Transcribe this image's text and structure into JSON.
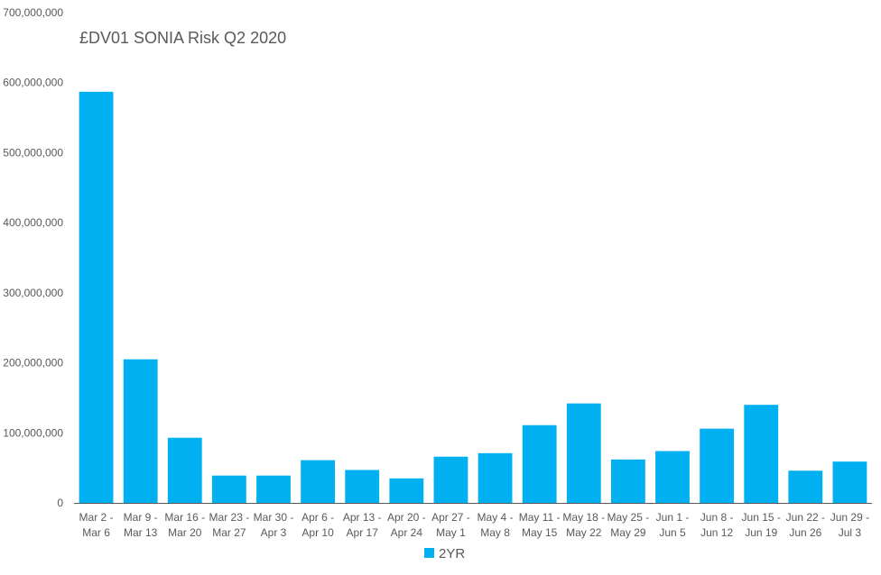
{
  "chart_data": {
    "type": "bar",
    "title": "£DV01 SONIA Risk Q2 2020",
    "xlabel": "",
    "ylabel": "",
    "ylim": [
      0,
      700000000
    ],
    "yticks": [
      "0",
      "100,000,000",
      "200,000,000",
      "300,000,000",
      "400,000,000",
      "500,000,000",
      "600,000,000",
      "700,000,000"
    ],
    "ytick_values": [
      0,
      100000000,
      200000000,
      300000000,
      400000000,
      500000000,
      600000000,
      700000000
    ],
    "categories": [
      [
        "Mar 2 -",
        "Mar 6"
      ],
      [
        "Mar 9 -",
        "Mar 13"
      ],
      [
        "Mar 16 -",
        "Mar 20"
      ],
      [
        "Mar 23 -",
        "Mar 27"
      ],
      [
        "Mar 30 -",
        "Apr 3"
      ],
      [
        "Apr 6 -",
        "Apr 10"
      ],
      [
        "Apr 13 -",
        "Apr 17"
      ],
      [
        "Apr 20 -",
        "Apr 24"
      ],
      [
        "Apr 27 -",
        "May 1"
      ],
      [
        "May 4 -",
        "May 8"
      ],
      [
        "May 11 -",
        "May 15"
      ],
      [
        "May 18 -",
        "May 22"
      ],
      [
        "May 25 -",
        "May 29"
      ],
      [
        "Jun 1 -",
        "Jun 5"
      ],
      [
        "Jun 8 -",
        "Jun 12"
      ],
      [
        "Jun 15 -",
        "Jun 19"
      ],
      [
        "Jun 22 -",
        "Jun 26"
      ],
      [
        "Jun 29 -",
        "Jul 3"
      ]
    ],
    "series": [
      {
        "name": "2YR",
        "color": "#00b0f0",
        "values": [
          587000000,
          205000000,
          93000000,
          39000000,
          39000000,
          61000000,
          47000000,
          35000000,
          66000000,
          71000000,
          111000000,
          142000000,
          62000000,
          74000000,
          106000000,
          140000000,
          46000000,
          59000000
        ]
      }
    ],
    "grid": false,
    "legend": "bottom"
  }
}
